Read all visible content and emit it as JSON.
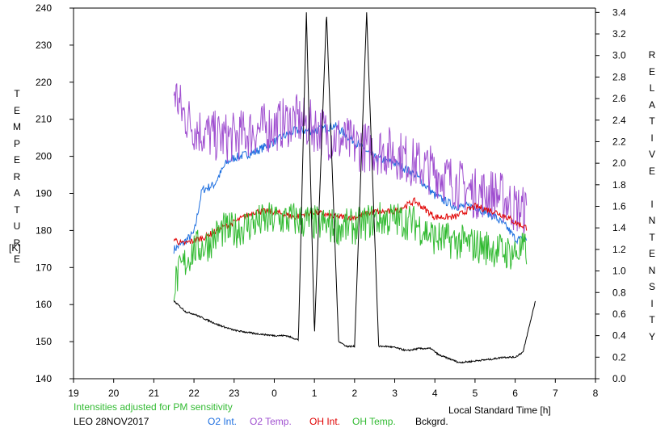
{
  "chart_data": {
    "type": "line",
    "station": "LEO 28NOV2017",
    "note": "Intensities adjusted for PM sensitivity",
    "xlabel": "Local Standard Time [h]",
    "ylabel_left": "TEMPERATURE",
    "ylabel_left_unit": "[K]",
    "ylabel_right": "RELATIVE INTENSITY",
    "x_ticks": [
      19,
      20,
      21,
      22,
      23,
      0,
      1,
      2,
      3,
      4,
      5,
      6,
      7,
      8
    ],
    "xlim": [
      19,
      32
    ],
    "y_left_ticks": [
      140,
      150,
      160,
      170,
      180,
      190,
      200,
      210,
      220,
      230,
      240
    ],
    "ylim_left": [
      140,
      240
    ],
    "y_right_ticks": [
      "0.0",
      "0.2",
      "0.4",
      "0.6",
      "0.8",
      "1.0",
      "1.2",
      "1.4",
      "1.6",
      "1.8",
      "2.0",
      "2.2",
      "2.4",
      "2.6",
      "2.8",
      "3.0",
      "3.2",
      "3.4"
    ],
    "ylim_right": [
      0,
      3.44
    ],
    "series": [
      {
        "name": "O2 Int.",
        "axis": "right",
        "color": "#1e6fe0",
        "x": [
          21.5,
          21.7,
          22.0,
          22.2,
          22.5,
          22.8,
          23.0,
          23.5,
          24.0,
          24.5,
          25.0,
          25.5,
          26.0,
          26.5,
          27.0,
          27.5,
          28.0,
          28.5,
          29.0,
          29.5,
          29.8,
          30.0,
          30.3
        ],
        "y": [
          1.2,
          1.25,
          1.35,
          1.75,
          1.8,
          2.0,
          2.05,
          2.1,
          2.2,
          2.3,
          2.3,
          2.35,
          2.2,
          2.05,
          2.0,
          1.9,
          1.7,
          1.6,
          1.6,
          1.5,
          1.4,
          1.3,
          1.28
        ]
      },
      {
        "name": "O2 Temp.",
        "axis": "left",
        "color": "#a050d0",
        "x": [
          21.5,
          21.7,
          22.0,
          22.3,
          22.7,
          23.0,
          23.5,
          24.0,
          24.5,
          25.0,
          25.5,
          26.0,
          26.5,
          27.0,
          27.5,
          28.0,
          28.5,
          29.0,
          29.5,
          29.8,
          30.0,
          30.3
        ],
        "y": [
          218,
          212,
          208,
          206,
          205,
          205,
          207,
          208,
          210,
          208,
          205,
          203,
          202,
          201,
          198,
          196,
          193,
          190,
          190,
          188,
          186,
          185
        ]
      },
      {
        "name": "OH Int.",
        "axis": "right",
        "color": "#e00000",
        "x": [
          21.5,
          21.7,
          22.0,
          22.3,
          22.7,
          23.0,
          23.5,
          24.0,
          24.5,
          25.0,
          25.5,
          26.0,
          26.5,
          27.0,
          27.5,
          28.0,
          28.5,
          29.0,
          29.5,
          29.8,
          30.0,
          30.3
        ],
        "y": [
          1.3,
          1.25,
          1.28,
          1.32,
          1.4,
          1.45,
          1.55,
          1.55,
          1.5,
          1.55,
          1.5,
          1.5,
          1.55,
          1.55,
          1.65,
          1.5,
          1.5,
          1.6,
          1.55,
          1.5,
          1.45,
          1.4
        ]
      },
      {
        "name": "OH Temp.",
        "axis": "left",
        "color": "#33bb33",
        "x": [
          21.5,
          21.7,
          22.0,
          22.3,
          22.7,
          23.0,
          23.5,
          24.0,
          24.5,
          25.0,
          25.5,
          26.0,
          26.5,
          27.0,
          27.5,
          28.0,
          28.5,
          29.0,
          29.5,
          29.8,
          30.0,
          30.3
        ],
        "y": [
          165,
          170,
          175,
          176,
          180,
          180,
          182,
          183,
          183,
          182,
          181,
          181,
          183,
          183,
          182,
          178,
          177,
          176,
          175,
          174,
          174,
          175
        ]
      },
      {
        "name": "Bckgrd.",
        "axis": "right",
        "color": "#000000",
        "x": [
          21.5,
          21.8,
          22.0,
          22.3,
          22.6,
          23.0,
          23.5,
          24.0,
          24.3,
          24.6,
          24.8,
          25.0,
          25.3,
          25.6,
          25.8,
          26.0,
          26.3,
          26.6,
          26.8,
          27.0,
          27.3,
          27.6,
          27.9,
          28.1,
          28.4,
          28.6,
          28.9,
          29.1,
          29.4,
          29.7,
          30.0,
          30.2,
          30.5
        ],
        "y": [
          0.72,
          0.62,
          0.6,
          0.55,
          0.5,
          0.45,
          0.42,
          0.4,
          0.4,
          0.36,
          3.4,
          0.4,
          3.4,
          0.35,
          0.3,
          0.3,
          3.4,
          0.3,
          0.3,
          0.29,
          0.26,
          0.28,
          0.28,
          0.22,
          0.18,
          0.15,
          0.16,
          0.17,
          0.18,
          0.2,
          0.2,
          0.25,
          0.72
        ]
      }
    ]
  },
  "legend": {
    "colors": {
      "o2_int": "#1e6fe0",
      "o2_temp": "#a050d0",
      "oh_int": "#e00000",
      "oh_temp": "#33bb33",
      "bckgrd": "#000000",
      "note": "#33bb33"
    }
  }
}
